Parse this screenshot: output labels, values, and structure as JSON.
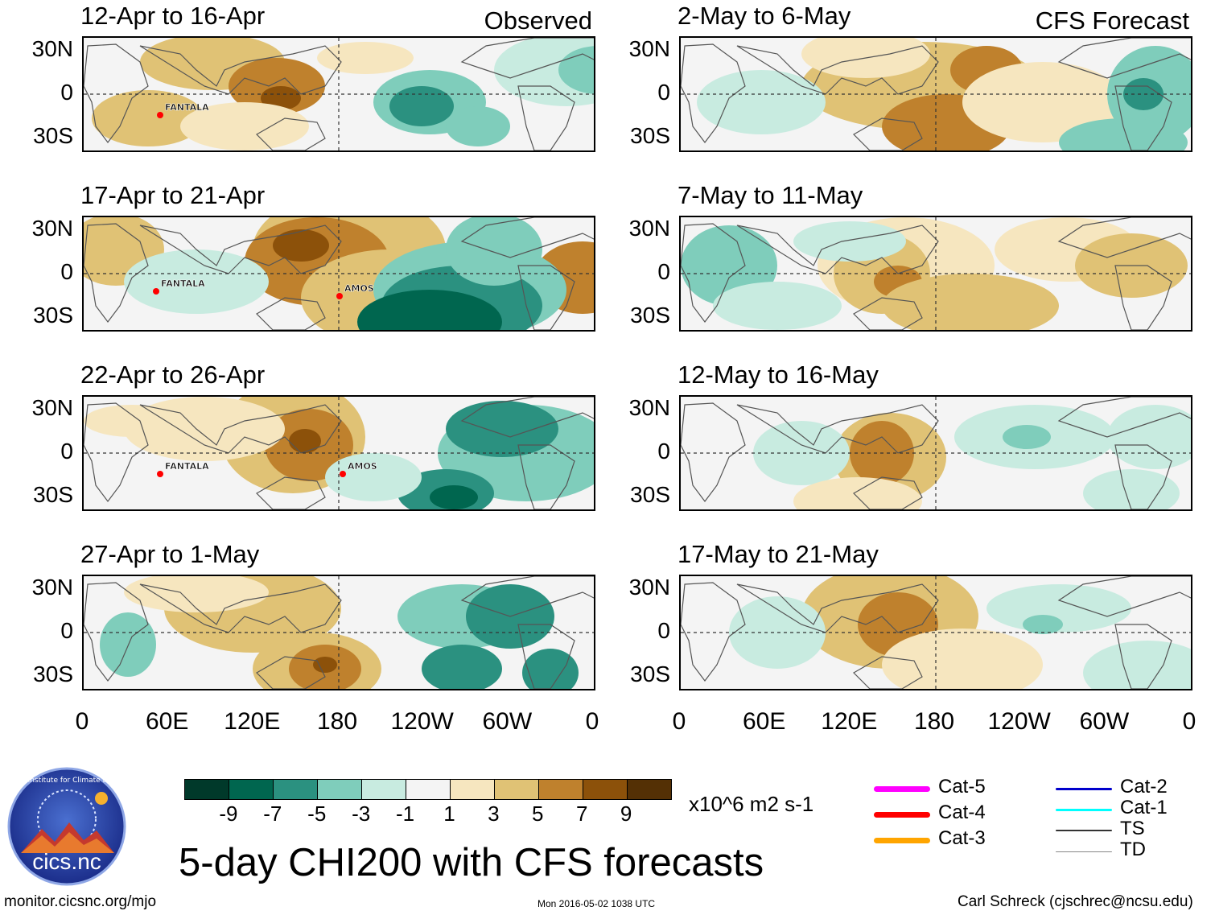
{
  "headers": {
    "left_tag": "Observed",
    "right_tag": "CFS Forecast"
  },
  "panels": [
    {
      "title": "12-Apr to 16-Apr",
      "storms": [
        "FANTALA"
      ]
    },
    {
      "title": "17-Apr to 21-Apr",
      "storms": [
        "FANTALA",
        "AMOS"
      ]
    },
    {
      "title": "22-Apr to 26-Apr",
      "storms": [
        "FANTALA",
        "AMOS"
      ]
    },
    {
      "title": "27-Apr to 1-May",
      "storms": []
    },
    {
      "title": "2-May to 6-May",
      "storms": []
    },
    {
      "title": "7-May to 11-May",
      "storms": []
    },
    {
      "title": "12-May to 16-May",
      "storms": []
    },
    {
      "title": "17-May to 21-May",
      "storms": []
    }
  ],
  "lat_labels": [
    "30N",
    "0",
    "30S"
  ],
  "lon_labels": [
    "0",
    "60E",
    "120E",
    "180",
    "120W",
    "60W",
    "0"
  ],
  "colorbar": {
    "colors": [
      "#00392a",
      "#00664f",
      "#2b9180",
      "#7fcdbb",
      "#c8ebe0",
      "#f4f4f4",
      "#f6e6bf",
      "#e0c275",
      "#bf812d",
      "#8c510a",
      "#543005"
    ],
    "ticks": [
      "-9",
      "-7",
      "-5",
      "-3",
      "-1",
      "1",
      "3",
      "5",
      "7",
      "9"
    ],
    "units": "x10^6 m2 s-1"
  },
  "title": "5-day CHI200 with CFS forecasts",
  "logo": {
    "text": "cics.nc",
    "ring_text": "Cooperative Institute for Climate and Satellites"
  },
  "legend": [
    {
      "label": "Cat-5",
      "color": "#ff00ff"
    },
    {
      "label": "Cat-4",
      "color": "#ff0000"
    },
    {
      "label": "Cat-3",
      "color": "#ffa500"
    },
    {
      "label": "Cat-2",
      "color": "#0000cc"
    },
    {
      "label": "Cat-1",
      "color": "#00ffff"
    },
    {
      "label": "TS",
      "color": "#333333"
    },
    {
      "label": "TD",
      "color": "#888888"
    }
  ],
  "footer": {
    "left": "monitor.cicsnc.org/mjo",
    "center": "Mon 2016-05-02 1038 UTC",
    "right": "Carl Schreck (cjschrec@ncsu.edu)"
  }
}
